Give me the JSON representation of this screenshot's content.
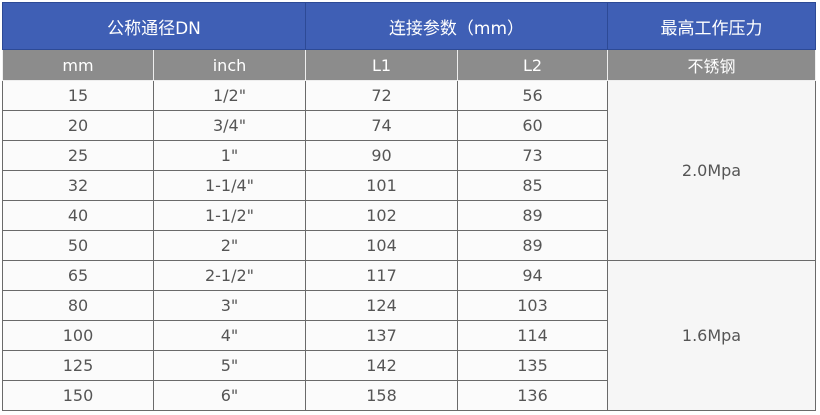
{
  "header": {
    "group1": "公称通径DN",
    "group2": "连接参数（mm）",
    "group3": "最高工作压力"
  },
  "subheader": {
    "mm": "mm",
    "inch": "inch",
    "l1": "L1",
    "l2": "L2",
    "material": "不锈钢"
  },
  "rows": [
    {
      "mm": "15",
      "inch": "1/2\"",
      "l1": "72",
      "l2": "56"
    },
    {
      "mm": "20",
      "inch": "3/4\"",
      "l1": "74",
      "l2": "60"
    },
    {
      "mm": "25",
      "inch": "1\"",
      "l1": "90",
      "l2": "73"
    },
    {
      "mm": "32",
      "inch": "1-1/4\"",
      "l1": "101",
      "l2": "85"
    },
    {
      "mm": "40",
      "inch": "1-1/2\"",
      "l1": "102",
      "l2": "89"
    },
    {
      "mm": "50",
      "inch": "2\"",
      "l1": "104",
      "l2": "89"
    },
    {
      "mm": "65",
      "inch": "2-1/2\"",
      "l1": "117",
      "l2": "94"
    },
    {
      "mm": "80",
      "inch": "3\"",
      "l1": "124",
      "l2": "103"
    },
    {
      "mm": "100",
      "inch": "4\"",
      "l1": "137",
      "l2": "114"
    },
    {
      "mm": "125",
      "inch": "5\"",
      "l1": "142",
      "l2": "135"
    },
    {
      "mm": "150",
      "inch": "6\"",
      "l1": "158",
      "l2": "136"
    }
  ],
  "pressure": [
    "2.0Mpa",
    "1.6Mpa"
  ]
}
